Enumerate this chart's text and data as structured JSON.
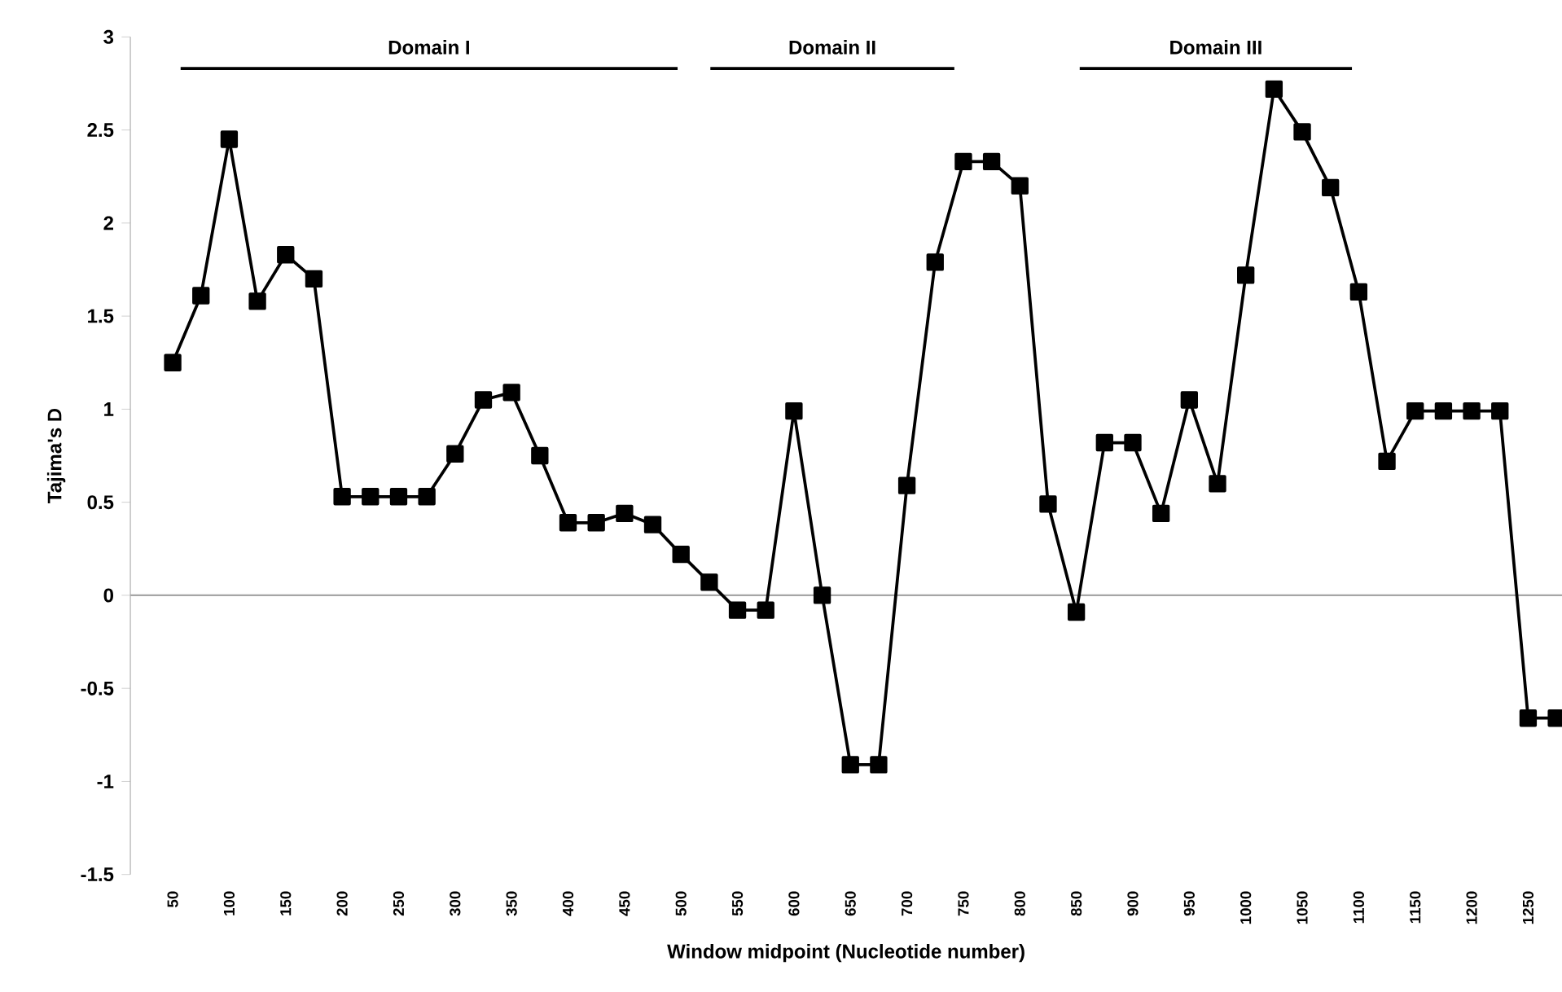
{
  "chart_data": {
    "type": "line",
    "xlabel": "Window midpoint (Nucleotide number)",
    "ylabel": "Tajima's D",
    "x": [
      50,
      75,
      100,
      125,
      150,
      175,
      200,
      225,
      250,
      275,
      300,
      325,
      350,
      375,
      400,
      425,
      450,
      475,
      500,
      525,
      550,
      575,
      600,
      625,
      650,
      675,
      700,
      725,
      750,
      775,
      800,
      825,
      850,
      875,
      900,
      925,
      950,
      975,
      1000,
      1025,
      1050,
      1075,
      1100,
      1125,
      1150,
      1175,
      1200,
      1225,
      1250,
      1275
    ],
    "series": [
      {
        "color": "#000000",
        "values": [
          1.25,
          1.61,
          2.45,
          1.58,
          1.83,
          1.7,
          0.53,
          0.53,
          0.53,
          0.53,
          0.76,
          1.05,
          1.09,
          0.75,
          0.39,
          0.39,
          0.44,
          0.38,
          0.22,
          0.07,
          -0.08,
          -0.08,
          0.99,
          0.0,
          -0.91,
          -0.91,
          0.59,
          1.79,
          2.33,
          2.33,
          2.2,
          0.49,
          -0.09,
          0.82,
          0.82,
          0.44,
          1.05,
          0.6,
          1.72,
          2.72,
          2.49,
          2.19,
          1.63,
          0.72,
          0.99,
          0.99,
          0.99,
          0.99,
          -0.66,
          -0.66
        ]
      },
      {
        "name": "Domain I",
        "type": "line",
        "marker": "none",
        "color": "#000000",
        "x": [
          57,
          497
        ],
        "values": [
          2.83,
          2.83
        ]
      },
      {
        "name": "Domain II",
        "type": "line",
        "marker": "none",
        "color": "#000000",
        "x": [
          526,
          742
        ],
        "values": [
          2.83,
          2.83
        ]
      },
      {
        "name": "Domain III",
        "type": "line",
        "marker": "none",
        "color": "#000000",
        "x": [
          853,
          1094
        ],
        "values": [
          2.83,
          2.83
        ]
      }
    ],
    "xlim": [
      12.5,
      1280
    ],
    "xticks": [
      50,
      100,
      150,
      200,
      250,
      300,
      350,
      400,
      450,
      500,
      550,
      600,
      650,
      700,
      750,
      800,
      850,
      900,
      950,
      1000,
      1050,
      1100,
      1150,
      1200,
      1250
    ],
    "ylim": [
      -1.5,
      3
    ],
    "yticks": [
      -1.5,
      -1,
      -0.5,
      0,
      0.5,
      1,
      1.5,
      2,
      2.5,
      3
    ],
    "ref_lines": [
      {
        "axis": "y",
        "value": 0,
        "color": "#a6a6a6"
      }
    ],
    "marker": "square",
    "grid": false,
    "legend": false
  }
}
